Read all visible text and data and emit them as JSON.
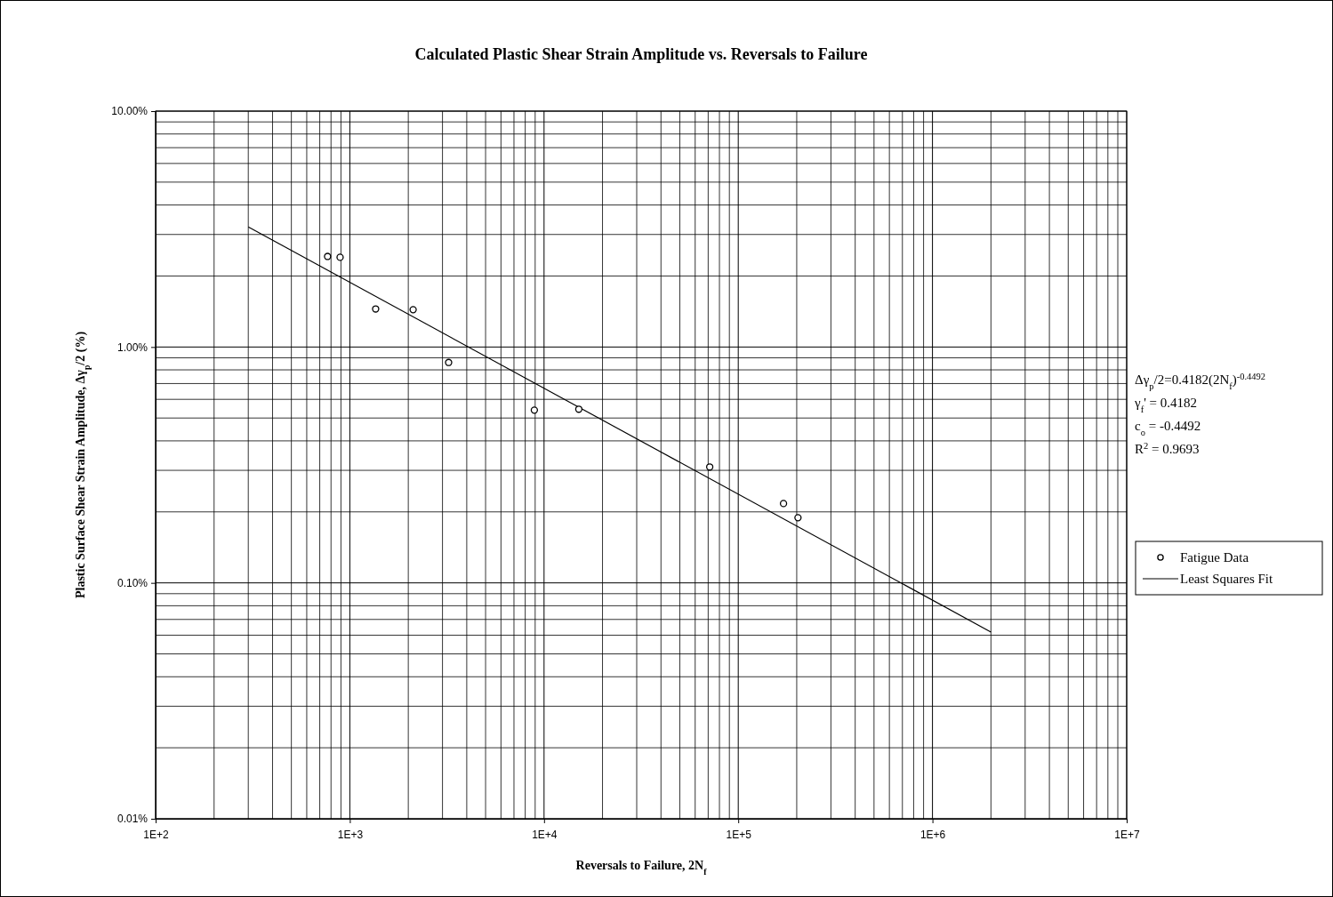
{
  "chart_data": {
    "type": "scatter",
    "title": "Calculated Plastic Shear Strain Amplitude vs. Reversals to Failure",
    "xlabel": "Reversals to Failure, 2N$_{f}$",
    "ylabel": "Plastic Surface Shear Strain Amplitude, Δγ$_{p}$/2 (%)",
    "log": "xy",
    "grid": true,
    "legend": "right",
    "xlim": [
      100,
      10000000
    ],
    "ylim": [
      0.01,
      10
    ],
    "xticks": [
      {
        "value": 100,
        "label": "1E+2"
      },
      {
        "value": 1000,
        "label": "1E+3"
      },
      {
        "value": 10000,
        "label": "1E+4"
      },
      {
        "value": 100000,
        "label": "1E+5"
      },
      {
        "value": 1000000,
        "label": "1E+6"
      },
      {
        "value": 10000000,
        "label": "1E+7"
      }
    ],
    "yticks": [
      {
        "value": 0.01,
        "label": "0.01%"
      },
      {
        "value": 0.1,
        "label": "0.10%"
      },
      {
        "value": 1,
        "label": "1.00%"
      },
      {
        "value": 10,
        "label": "10.00%"
      }
    ],
    "series": [
      {
        "name": "Fatigue Data",
        "marker": "circle",
        "color": "#000000",
        "x": [
          768,
          891,
          1358,
          2118,
          3226,
          8913,
          15100,
          71300,
          171000,
          203000
        ],
        "values": [
          2.42,
          2.4,
          1.45,
          1.44,
          0.86,
          0.54,
          0.545,
          0.31,
          0.217,
          0.189
        ]
      },
      {
        "name": "Least Squares Fit",
        "type": "line",
        "color": "#000000",
        "line_style": "solid",
        "x": [
          300,
          2000000
        ],
        "values": [
          3.23,
          0.0619
        ]
      }
    ],
    "annotations": [
      "Δγ$_{p}$/2=0.4182(2N$_{f}$)$^{-0.4492}$",
      "γ$_{f}$' = 0.4182",
      "c$_{o}$ = -0.4492",
      "R$^{2}$ = 0.9693"
    ]
  }
}
